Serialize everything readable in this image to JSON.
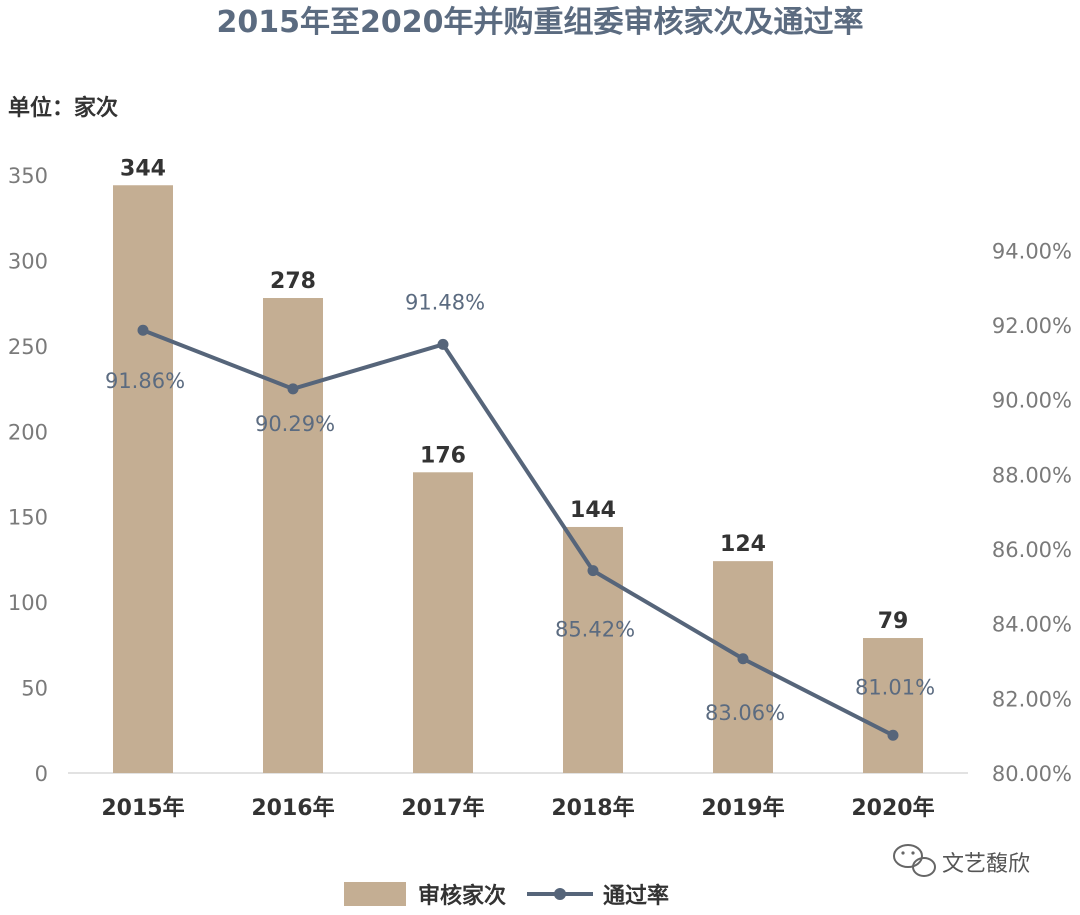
{
  "chart_data": {
    "type": "bar",
    "title": "2015年至2020年并购重组委审核家次及通过率",
    "unit_label": "单位：家次",
    "categories": [
      "2015年",
      "2016年",
      "2017年",
      "2018年",
      "2019年",
      "2020年"
    ],
    "series": [
      {
        "name": "审核家次",
        "kind": "bar",
        "axis": "left",
        "values": [
          344,
          278,
          176,
          144,
          124,
          79
        ],
        "labels": [
          "344",
          "278",
          "176",
          "144",
          "124",
          "79"
        ]
      },
      {
        "name": "通过率",
        "kind": "line",
        "axis": "right",
        "values": [
          91.86,
          90.29,
          91.48,
          85.42,
          83.06,
          81.01
        ],
        "labels": [
          "91.86%",
          "90.29%",
          "91.48%",
          "85.42%",
          "83.06%",
          "81.01%"
        ]
      }
    ],
    "left_axis": {
      "ylim": [
        0,
        350
      ],
      "ticks": [
        0,
        50,
        100,
        150,
        200,
        250,
        300,
        350
      ],
      "tick_labels": [
        "0",
        "50",
        "100",
        "150",
        "200",
        "250",
        "300",
        "350"
      ]
    },
    "right_axis": {
      "ylim": [
        80,
        95
      ],
      "ticks": [
        80,
        82,
        84,
        86,
        88,
        90,
        92,
        94
      ],
      "tick_labels": [
        "80.00%",
        "82.00%",
        "84.00%",
        "86.00%",
        "88.00%",
        "90.00%",
        "92.00%",
        "94.00%"
      ]
    },
    "grid": false,
    "legend_position": "bottom"
  },
  "watermark": {
    "text": "文艺馥欣",
    "icon": "wechat-icon"
  },
  "colors": {
    "bar": "#c4ae93",
    "line": "#56657a",
    "title": "#5b6b80",
    "rate_label": "#5b6b80"
  }
}
